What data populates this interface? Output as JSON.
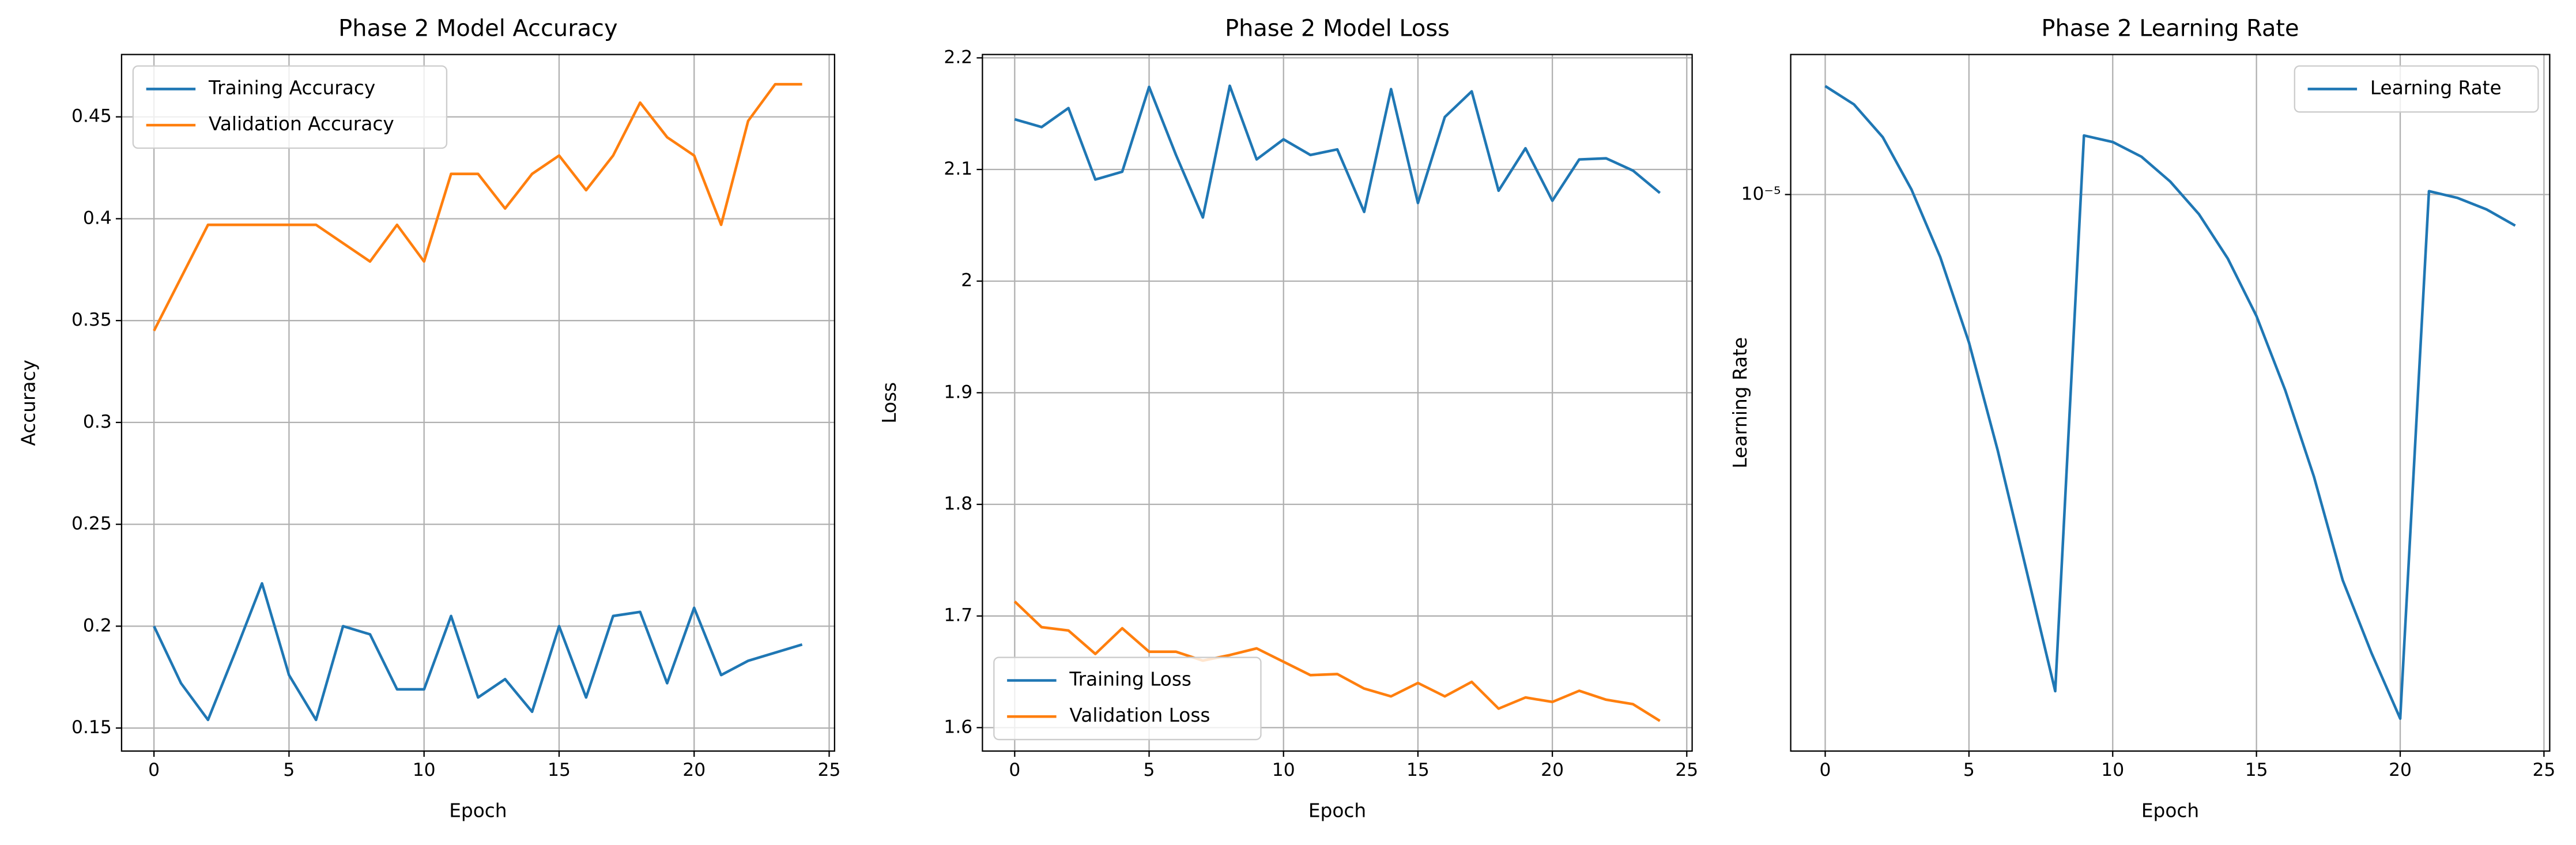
{
  "chart_data": [
    {
      "type": "line",
      "title": "Phase 2 Model Accuracy",
      "x_label": "Epoch",
      "y_label": "Accuracy",
      "x": [
        0,
        1,
        2,
        3,
        4,
        5,
        6,
        7,
        8,
        9,
        10,
        11,
        12,
        13,
        14,
        15,
        16,
        17,
        18,
        19,
        20,
        21,
        22,
        23,
        24
      ],
      "series": [
        {
          "name": "Training Accuracy",
          "color": "#1f77b4",
          "values": [
            0.2,
            0.172,
            0.154,
            0.187,
            0.221,
            0.176,
            0.154,
            0.2,
            0.196,
            0.169,
            0.169,
            0.205,
            0.165,
            0.174,
            0.158,
            0.2,
            0.165,
            0.205,
            0.207,
            0.172,
            0.209,
            0.176,
            0.183,
            0.187,
            0.191
          ]
        },
        {
          "name": "Validation Accuracy",
          "color": "#ff7f0e",
          "values": [
            0.345,
            0.371,
            0.397,
            0.397,
            0.397,
            0.397,
            0.397,
            0.388,
            0.379,
            0.397,
            0.379,
            0.422,
            0.422,
            0.405,
            0.422,
            0.431,
            0.414,
            0.431,
            0.457,
            0.44,
            0.431,
            0.397,
            0.448,
            0.466,
            0.466
          ]
        }
      ],
      "xlim": [
        -1.2,
        25.2
      ],
      "xticks": [
        0,
        5,
        10,
        15,
        20,
        25
      ],
      "ylim": [
        0.1387,
        0.4806
      ],
      "yticks": [
        0.15,
        0.2,
        0.25,
        0.3,
        0.35,
        0.4,
        0.45
      ],
      "grid": true,
      "legend": "upper left"
    },
    {
      "type": "line",
      "title": "Phase 2 Model Loss",
      "x_label": "Epoch",
      "y_label": "Loss",
      "x": [
        0,
        1,
        2,
        3,
        4,
        5,
        6,
        7,
        8,
        9,
        10,
        11,
        12,
        13,
        14,
        15,
        16,
        17,
        18,
        19,
        20,
        21,
        22,
        23,
        24
      ],
      "series": [
        {
          "name": "Training Loss",
          "color": "#1f77b4",
          "values": [
            2.145,
            2.138,
            2.155,
            2.091,
            2.098,
            2.174,
            2.113,
            2.057,
            2.175,
            2.109,
            2.127,
            2.113,
            2.118,
            2.062,
            2.172,
            2.07,
            2.147,
            2.17,
            2.081,
            2.119,
            2.072,
            2.109,
            2.11,
            2.099,
            2.079
          ]
        },
        {
          "name": "Validation Loss",
          "color": "#ff7f0e",
          "values": [
            1.713,
            1.69,
            1.687,
            1.666,
            1.689,
            1.668,
            1.668,
            1.66,
            1.665,
            1.671,
            1.659,
            1.647,
            1.648,
            1.635,
            1.628,
            1.64,
            1.628,
            1.641,
            1.617,
            1.627,
            1.623,
            1.633,
            1.625,
            1.621,
            1.606
          ]
        }
      ],
      "xlim": [
        -1.2,
        25.2
      ],
      "xticks": [
        0,
        5,
        10,
        15,
        20,
        25
      ],
      "ylim": [
        1.579,
        2.203
      ],
      "yticks": [
        1.6,
        1.7,
        1.8,
        1.9,
        2.0,
        2.1,
        2.2
      ],
      "grid": true,
      "legend": "lower left"
    },
    {
      "type": "line",
      "title": "Phase 2 Learning Rate",
      "x_label": "Epoch",
      "y_label": "Learning Rate",
      "x": [
        0,
        1,
        2,
        3,
        4,
        5,
        6,
        7,
        8,
        9,
        10,
        11,
        12,
        13,
        14,
        15,
        16,
        17,
        18,
        19,
        20,
        21,
        22,
        23,
        24
      ],
      "series": [
        {
          "name": "Learning Rate",
          "color": "#1f77b4",
          "values": [
            1.467e-05,
            1.375e-05,
            1.225e-05,
            1.018e-05,
            8.02e-06,
            5.93e-06,
            4.05e-06,
            2.65e-06,
            1.73e-06,
            1.232e-05,
            1.204e-05,
            1.143e-05,
            1.047e-05,
            9.33e-06,
            7.98e-06,
            6.51e-06,
            5.01e-06,
            3.69e-06,
            2.56e-06,
            1.98e-06,
            1.57e-06,
            1.012e-05,
            9.88e-06,
            9.49e-06,
            8.96e-06
          ]
        }
      ],
      "xlim": [
        -1.2,
        25.2
      ],
      "xticks": [
        0,
        5,
        10,
        15,
        20,
        25
      ],
      "ylim": [
        1.4e-06,
        1.64e-05
      ],
      "yticks": [
        {
          "value": 1e-05,
          "label": "10⁻⁵"
        }
      ],
      "log_y": true,
      "grid": true,
      "legend": "upper right"
    }
  ]
}
